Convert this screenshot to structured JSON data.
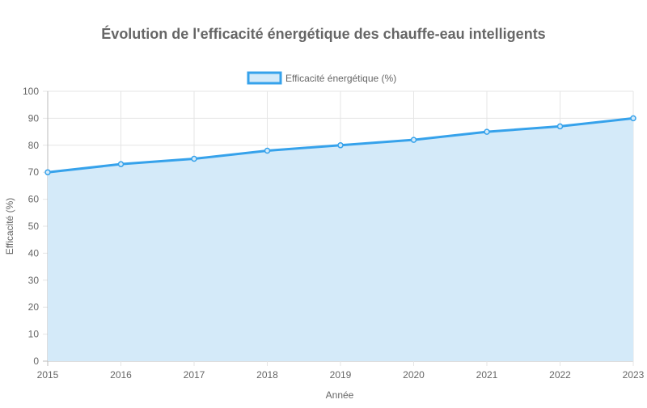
{
  "chart_data": {
    "type": "line",
    "title": "Évolution de l'efficacité énergétique des chauffe-eau intelligents",
    "xlabel": "Année",
    "ylabel": "Efficacité (%)",
    "categories": [
      "2015",
      "2016",
      "2017",
      "2018",
      "2019",
      "2020",
      "2021",
      "2022",
      "2023"
    ],
    "series": [
      {
        "name": "Efficacité énergétique (%)",
        "values": [
          70,
          73,
          75,
          78,
          80,
          82,
          85,
          87,
          90
        ],
        "fill": true
      }
    ],
    "ylim": [
      0,
      100
    ],
    "yticks": [
      0,
      10,
      20,
      30,
      40,
      50,
      60,
      70,
      80,
      90,
      100
    ],
    "grid": true,
    "legend": "top",
    "colors": {
      "line": "#36a2eb",
      "fill": "#d4eaf9",
      "grid": "#e5e5e5",
      "text": "#666666"
    }
  }
}
